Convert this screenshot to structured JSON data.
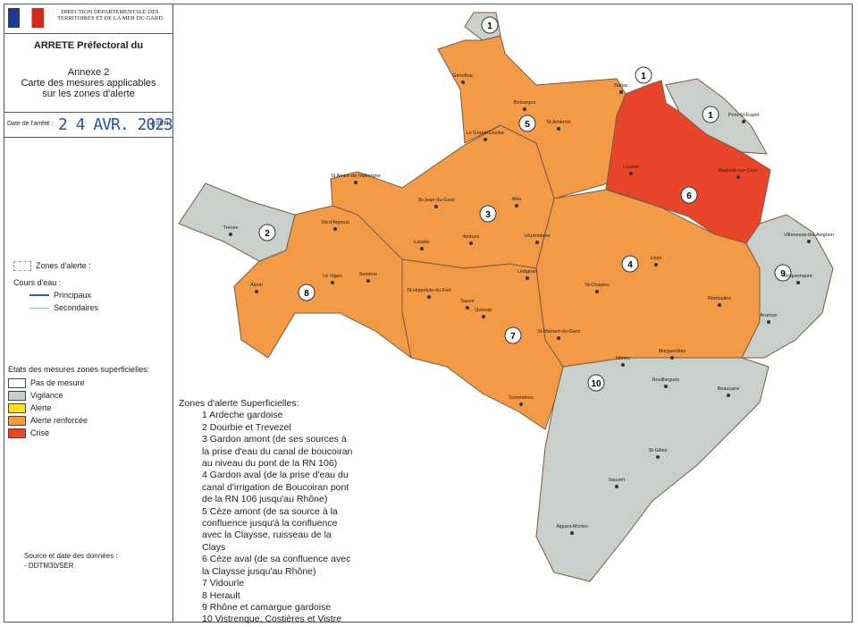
{
  "header": {
    "org": "DIRECTION DEPARTEMENTALE DES TERRITOIRES ET DE LA MER DU GARD",
    "title": "ARRETE Préfectoral du",
    "annex": "Annexe 2",
    "subtitle": "Carte des mesures applicables sur les zones d'alerte"
  },
  "date": {
    "label": "Date de l'arrêté :",
    "value": "2 4 AVR. 2023",
    "stamp": "SER"
  },
  "legend": {
    "zones_label": "Zones d'alerte :",
    "rivers_title": "Cours d'eau :",
    "rivers": [
      {
        "label": "Principaux",
        "color": "#2a5cb8"
      },
      {
        "label": "Secondaires",
        "color": "#8fb8e0"
      }
    ],
    "states_title": "Etats des mesures zones superficielles:",
    "states": [
      {
        "label": "Pas de mesure",
        "color": "#ffffff"
      },
      {
        "label": "Vigilance",
        "color": "#c9cfca"
      },
      {
        "label": "Alerte",
        "color": "#ffe11a"
      },
      {
        "label": "Alerte renforcée",
        "color": "#f29a46"
      },
      {
        "label": "Crise",
        "color": "#e8452a"
      }
    ]
  },
  "source": {
    "title": "Source et date des données :",
    "value": "- DDTM30/SER"
  },
  "zones_list": {
    "title": "Zones d'alerte Superficielles:",
    "items": [
      "1 Ardeche gardoise",
      "2 Dourbie et Trevezel",
      "3 Gardon amont (de ses sources à la prise d'eau du canal de boucoiran au niveau du pont de la RN 106)",
      "4 Gardon aval (de la prise d'eau du canal d'irrigation de Boucoiran pont de la RN 106 jusqu'au Rhône)",
      "5 Cèze amont (de sa source à la confluence jusqu'à la confluence avec la Claysse, ruisseau de la Clays",
      "6 Cèze aval (de sa confluence avec la Claysse jusqu'au Rhône)",
      "7 Vidourle",
      "8 Herault",
      "9 Rhône et camargue gardoise",
      "10 Vistrenque, Costières et Vistre"
    ]
  },
  "map": {
    "zone_numbers": [
      "1",
      "1",
      "1",
      "2",
      "3",
      "4",
      "5",
      "6",
      "7",
      "8",
      "9",
      "10"
    ],
    "towns": [
      "Génolhac",
      "Besseges",
      "St-Ambroix",
      "Barjac",
      "Pont-St-Esprit",
      "Le Grand-Combe",
      "St André-de-Valborgne",
      "St-Jean-du-Gard",
      "Alès",
      "Lussan",
      "Bagnols-sur-Cèze",
      "Trèves",
      "Val d'Aigoual",
      "Anduze",
      "Lasalle",
      "Vézénobres",
      "Uzès",
      "Villeneuve-lès-Avignon",
      "Le Vigan",
      "Sumène",
      "Alzon",
      "St-Hippolyte-du-Fort",
      "Lédignan",
      "St-Chaptes",
      "Sauve",
      "Quissac",
      "Remoulins",
      "Aramon",
      "St-Mamert-du-Gard",
      "Nîmes",
      "Marguerittes",
      "Bouillargues",
      "Beaucaire",
      "Sommières",
      "St-Gilles",
      "Vauvert",
      "Aigues-Mortes",
      "Roquemaure"
    ]
  }
}
